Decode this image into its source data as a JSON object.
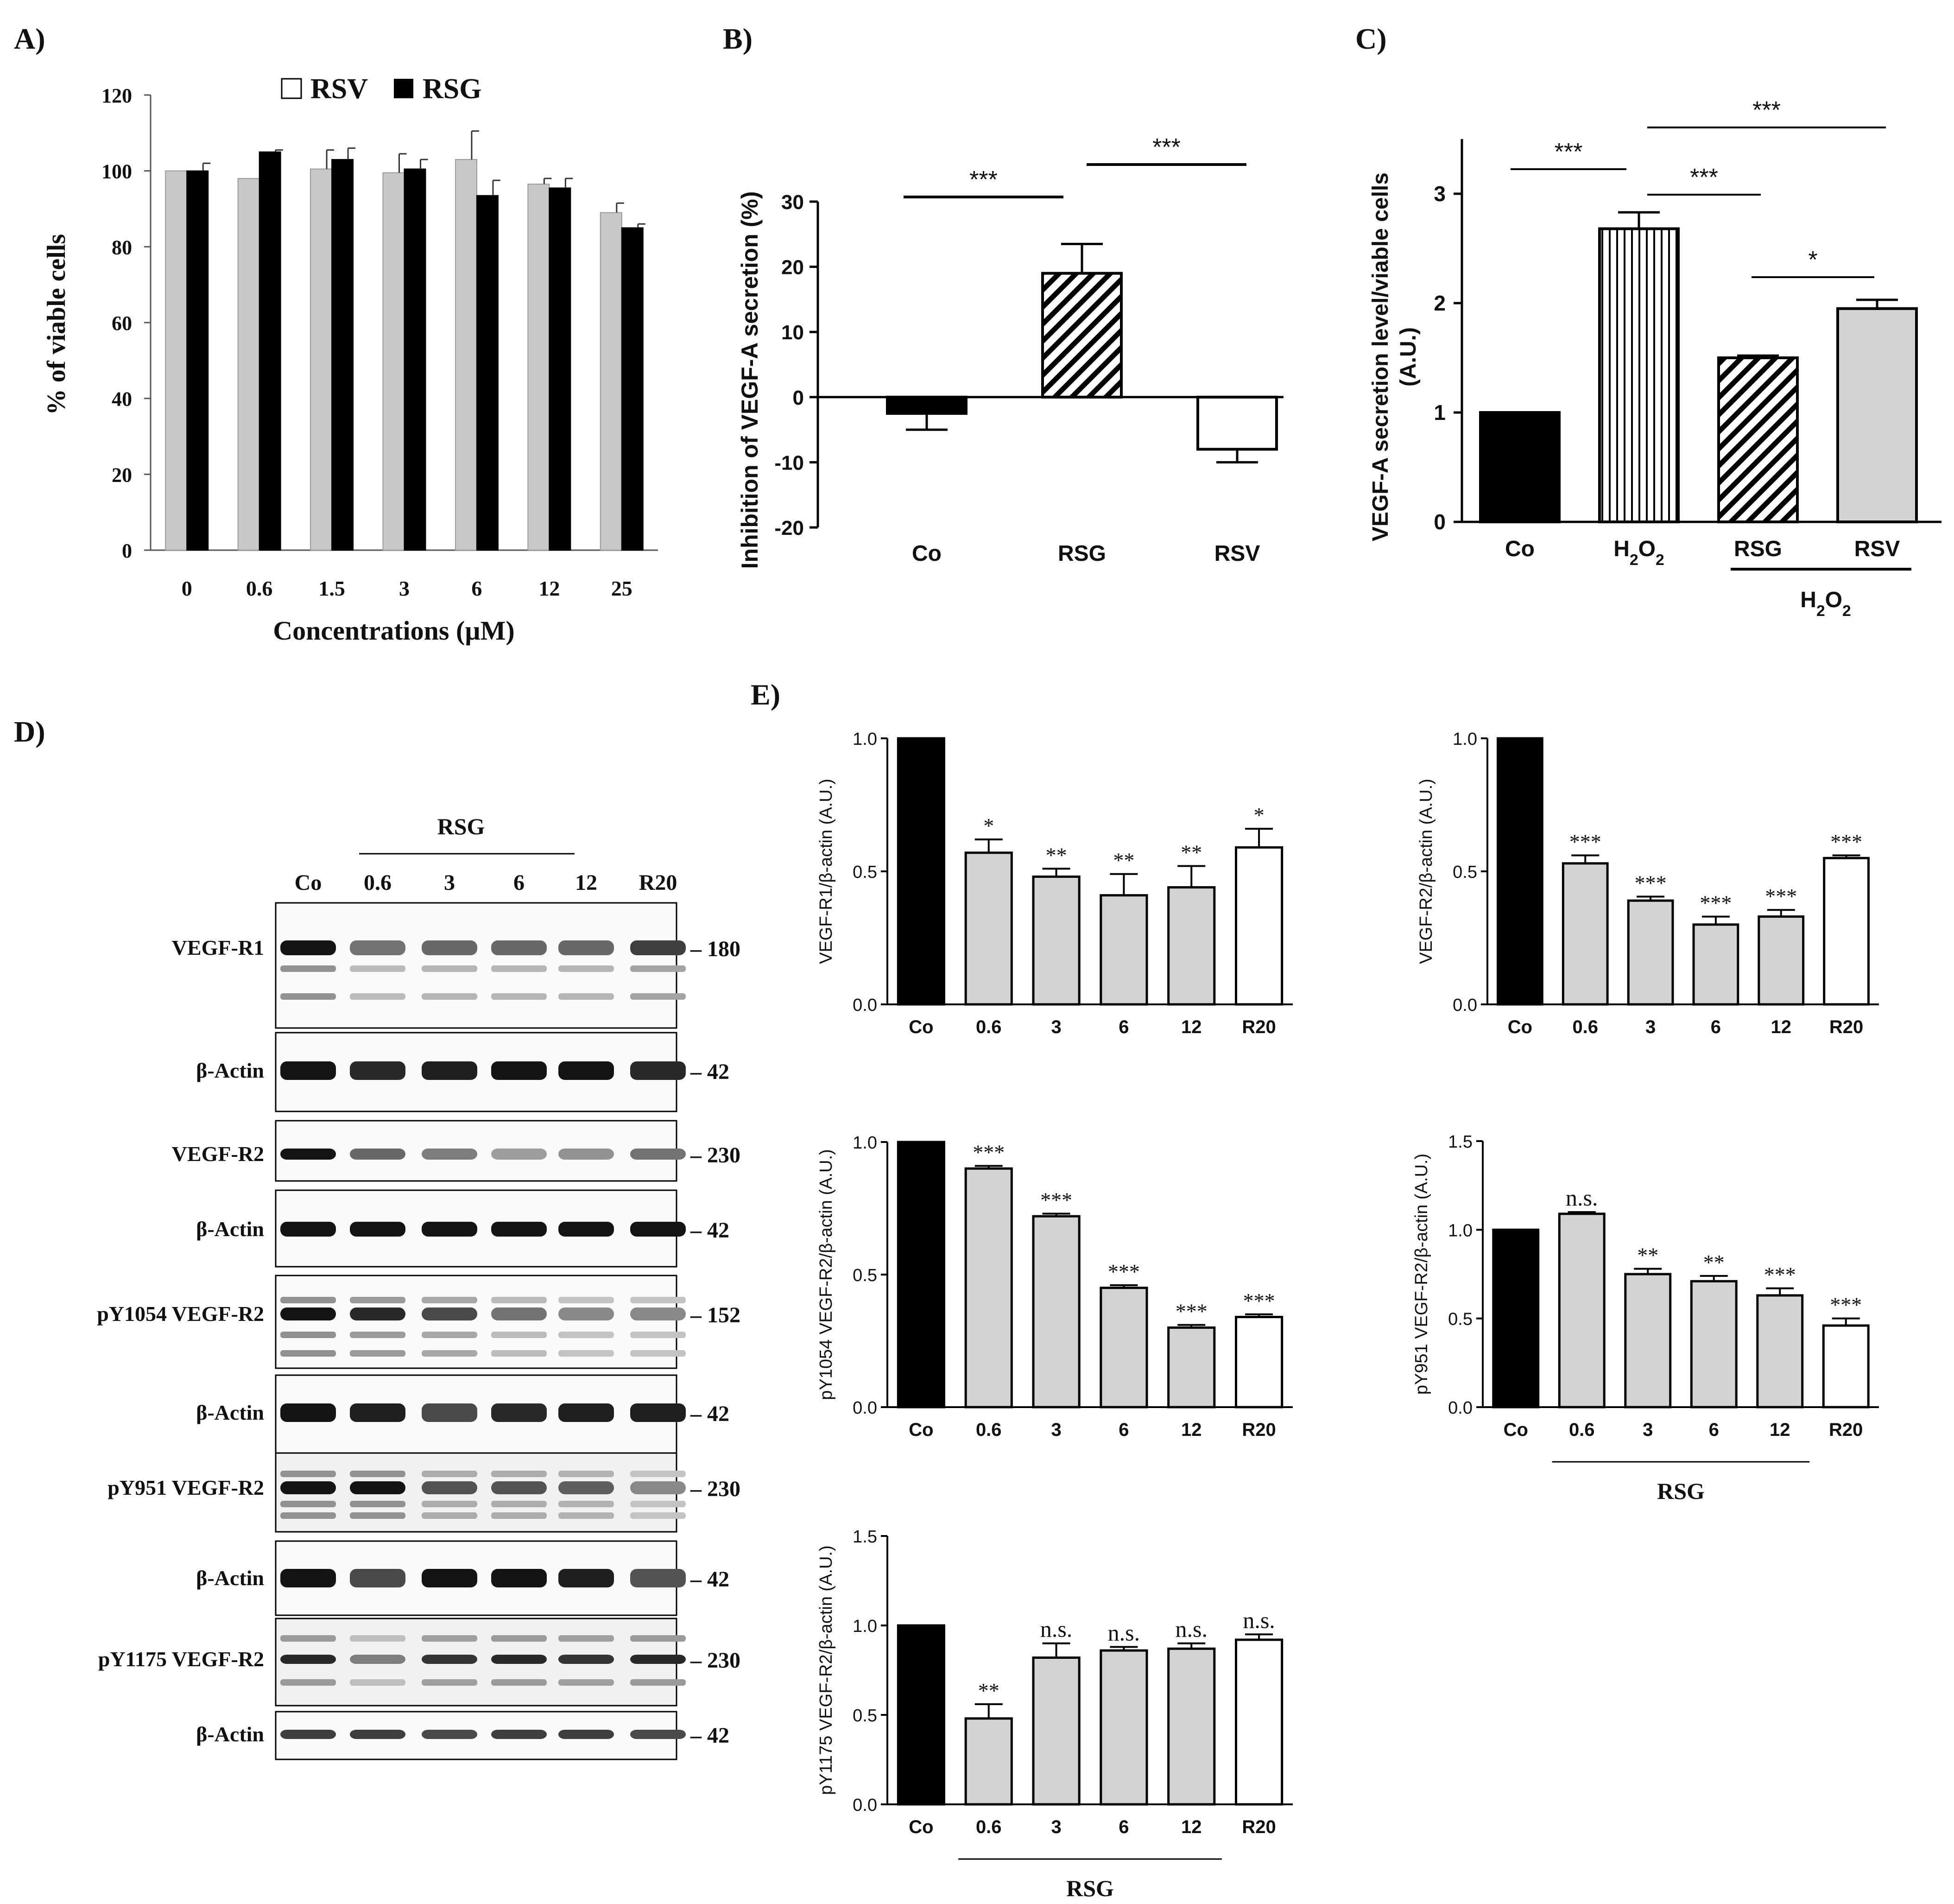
{
  "panel_letters": {
    "A": "A)",
    "B": "B)",
    "C": "C)",
    "D": "D)",
    "E": "E)"
  },
  "colors": {
    "rsv": "#c8c8c8",
    "rsg": "#000000",
    "gray": "#d3d3d3",
    "black": "#000000",
    "white": "#ffffff",
    "text": "#111111"
  },
  "chart_data": [
    {
      "id": "A",
      "type": "bar",
      "legend": [
        "RSV",
        "RSG"
      ],
      "xlabel": "Concentrations  (µM)",
      "ylabel": "% of viable cells",
      "categories": [
        "0",
        "0.6",
        "1.5",
        "3",
        "6",
        "12",
        "25"
      ],
      "series": [
        {
          "name": "RSV",
          "values": [
            100,
            98,
            100.5,
            99.5,
            103,
            96.5,
            89
          ],
          "errors": [
            0,
            0,
            5,
            5,
            7.5,
            1.5,
            2.5
          ]
        },
        {
          "name": "RSG",
          "values": [
            100,
            105,
            103,
            100.5,
            93.5,
            95.5,
            85
          ],
          "errors": [
            2,
            0.5,
            3,
            2.5,
            4,
            2.5,
            1
          ]
        }
      ],
      "ylim": [
        0,
        120
      ],
      "yticks": [
        "0",
        "20",
        "40",
        "60",
        "80",
        "100",
        "120"
      ]
    },
    {
      "id": "B",
      "type": "bar",
      "ylabel": "Inhibition of VEGF-A secretion (%)",
      "categories": [
        "Co",
        "RSG",
        "RSV"
      ],
      "values": [
        -2.5,
        19,
        -8
      ],
      "errors": [
        2.5,
        4.5,
        2
      ],
      "ylim": [
        -20,
        30
      ],
      "yticks": [
        "-20",
        "-10",
        "0",
        "10",
        "20",
        "30"
      ],
      "significance": [
        {
          "label": "***",
          "from": 0,
          "to": 1
        },
        {
          "label": "***",
          "from": 1,
          "to": 2
        }
      ]
    },
    {
      "id": "C",
      "type": "bar",
      "ylabel_line1": "VEGF-A secretion level/viable cells",
      "ylabel_line2": "(A.U.)",
      "categories": [
        "Co",
        "H₂O₂",
        "RSG",
        "RSV"
      ],
      "group_label": "H₂O₂",
      "values": [
        1.0,
        2.68,
        1.5,
        1.95
      ],
      "errors": [
        0,
        0.15,
        0.02,
        0.08
      ],
      "ylim": [
        0,
        3.5
      ],
      "yticks": [
        "0",
        "1",
        "2",
        "3"
      ],
      "significance": [
        {
          "label": "***",
          "from": 0,
          "to": 1
        },
        {
          "label": "***",
          "from": 1,
          "to": 3
        },
        {
          "label": "***",
          "from": 1,
          "to": 2
        },
        {
          "label": "*",
          "from": 2,
          "to": 3
        }
      ]
    },
    {
      "id": "E1",
      "type": "bar",
      "ylabel": "VEGF-R1/β-actin (A.U.)",
      "categories": [
        "Co",
        "0.6",
        "3",
        "6",
        "12",
        "R20"
      ],
      "values": [
        1.0,
        0.57,
        0.48,
        0.41,
        0.44,
        0.59
      ],
      "errors": [
        0,
        0.05,
        0.03,
        0.08,
        0.08,
        0.07
      ],
      "stars": [
        "",
        "*",
        "**",
        "**",
        "**",
        "*"
      ],
      "ylim": [
        0,
        1.0
      ],
      "yticks": [
        "0.0",
        "0.5",
        "1.0"
      ]
    },
    {
      "id": "E2",
      "type": "bar",
      "ylabel": "VEGF-R2/β-actin (A.U.)",
      "categories": [
        "Co",
        "0.6",
        "3",
        "6",
        "12",
        "R20"
      ],
      "values": [
        1.0,
        0.53,
        0.39,
        0.3,
        0.33,
        0.55
      ],
      "errors": [
        0,
        0.03,
        0.015,
        0.03,
        0.025,
        0.01
      ],
      "stars": [
        "",
        "***",
        "***",
        "***",
        "***",
        "***"
      ],
      "ylim": [
        0,
        1.0
      ],
      "yticks": [
        "0.0",
        "0.5",
        "1.0"
      ]
    },
    {
      "id": "E3",
      "type": "bar",
      "ylabel": "pY1054 VEGF-R2/β-actin (A.U.)",
      "categories": [
        "Co",
        "0.6",
        "3",
        "6",
        "12",
        "R20"
      ],
      "values": [
        1.0,
        0.9,
        0.72,
        0.45,
        0.3,
        0.34
      ],
      "errors": [
        0,
        0.01,
        0.01,
        0.01,
        0.01,
        0.01
      ],
      "stars": [
        "",
        "***",
        "***",
        "***",
        "***",
        "***"
      ],
      "ylim": [
        0,
        1.0
      ],
      "yticks": [
        "0.0",
        "0.5",
        "1.0"
      ]
    },
    {
      "id": "E4",
      "type": "bar",
      "ylabel": "pY951 VEGF-R2/β-actin (A.U.)",
      "categories": [
        "Co",
        "0.6",
        "3",
        "6",
        "12",
        "R20"
      ],
      "values": [
        1.0,
        1.09,
        0.75,
        0.71,
        0.63,
        0.46
      ],
      "errors": [
        0,
        0.01,
        0.03,
        0.03,
        0.04,
        0.04
      ],
      "stars": [
        "",
        "n.s.",
        "**",
        "**",
        "***",
        "***"
      ],
      "group_label": "RSG",
      "ylim": [
        0,
        1.5
      ],
      "yticks": [
        "0.0",
        "0.5",
        "1.0",
        "1.5"
      ]
    },
    {
      "id": "E5",
      "type": "bar",
      "ylabel": "pY1175 VEGF-R2/β-actin (A.U.)",
      "categories": [
        "Co",
        "0.6",
        "3",
        "6",
        "12",
        "R20"
      ],
      "values": [
        1.0,
        0.48,
        0.82,
        0.86,
        0.87,
        0.92
      ],
      "errors": [
        0,
        0.08,
        0.08,
        0.02,
        0.03,
        0.03
      ],
      "stars": [
        "",
        "**",
        "n.s.",
        "n.s.",
        "n.s.",
        "n.s."
      ],
      "group_label": "RSG",
      "ylim": [
        0,
        1.5
      ],
      "yticks": [
        "0.0",
        "0.5",
        "1.0",
        "1.5"
      ]
    }
  ],
  "western_blot": {
    "group_label": "RSG",
    "lanes": [
      "Co",
      "0.6",
      "3",
      "6",
      "12",
      "R20"
    ],
    "rows": [
      {
        "label": "VEGF-R1",
        "mw": "– 180"
      },
      {
        "label": "β-Actin",
        "mw": "– 42"
      },
      {
        "label": "VEGF-R2",
        "mw": "– 230"
      },
      {
        "label": "β-Actin",
        "mw": "– 42"
      },
      {
        "label": "pY1054  VEGF-R2",
        "mw": "– 152"
      },
      {
        "label": "β-Actin",
        "mw": "– 42"
      },
      {
        "label": "pY951  VEGF-R2",
        "mw": "– 230"
      },
      {
        "label": "β-Actin",
        "mw": "– 42"
      },
      {
        "label": "pY1175  VEGF-R2",
        "mw": "– 230"
      },
      {
        "label": "β-Actin",
        "mw": "– 42"
      }
    ]
  }
}
